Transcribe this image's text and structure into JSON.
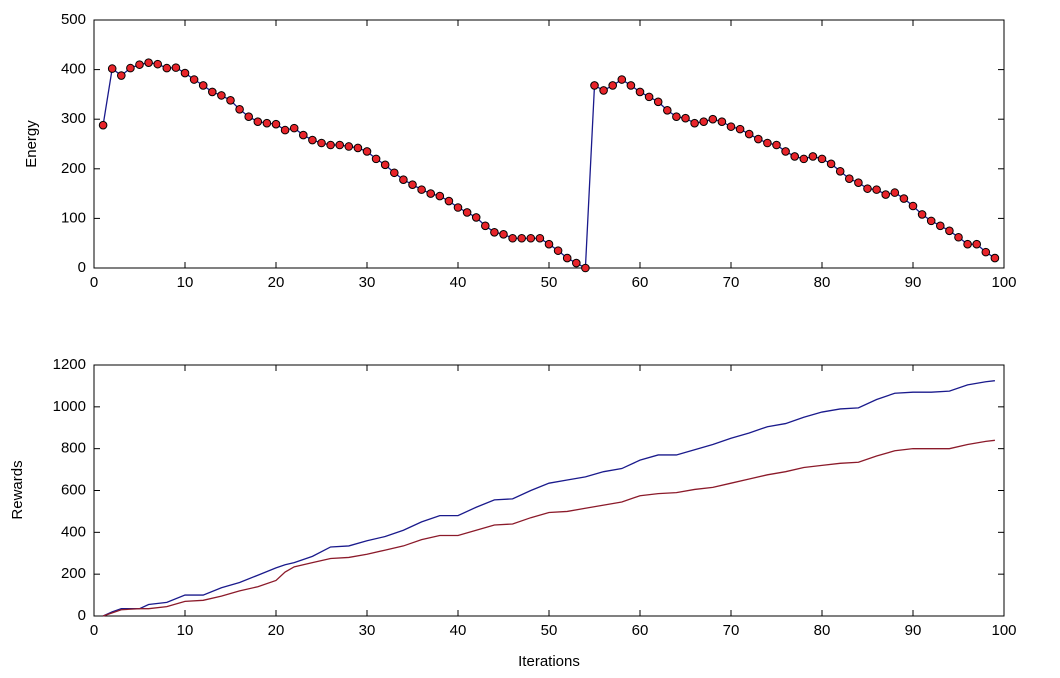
{
  "chart_data": [
    {
      "type": "line",
      "ylabel": "Energy",
      "x": [
        1,
        2,
        3,
        4,
        5,
        6,
        7,
        8,
        9,
        10,
        11,
        12,
        13,
        14,
        15,
        16,
        17,
        18,
        19,
        20,
        21,
        22,
        23,
        24,
        25,
        26,
        27,
        28,
        29,
        30,
        31,
        32,
        33,
        34,
        35,
        36,
        37,
        38,
        39,
        40,
        41,
        42,
        43,
        44,
        45,
        46,
        47,
        48,
        49,
        50,
        51,
        52,
        53,
        54,
        55,
        56,
        57,
        58,
        59,
        60,
        61,
        62,
        63,
        64,
        65,
        66,
        67,
        68,
        69,
        70,
        71,
        72,
        73,
        74,
        75,
        76,
        77,
        78,
        79,
        80,
        81,
        82,
        83,
        84,
        85,
        86,
        87,
        88,
        89,
        90,
        91,
        92,
        93,
        94,
        95,
        96,
        97,
        98,
        99
      ],
      "series": [
        {
          "color": "#1a1a8c",
          "marker_color": "#e8242a",
          "values": [
            288,
            402,
            388,
            403,
            410,
            414,
            411,
            403,
            404,
            393,
            380,
            368,
            355,
            348,
            338,
            320,
            305,
            295,
            292,
            290,
            278,
            282,
            268,
            258,
            252,
            248,
            248,
            245,
            242,
            235,
            220,
            208,
            192,
            178,
            168,
            158,
            150,
            145,
            135,
            122,
            112,
            102,
            85,
            72,
            68,
            60,
            60,
            60,
            60,
            48,
            35,
            20,
            10,
            0,
            368,
            358,
            368,
            380,
            368,
            355,
            345,
            335,
            318,
            305,
            302,
            292,
            295,
            300,
            295,
            285,
            280,
            270,
            260,
            252,
            248,
            235,
            225,
            220,
            225,
            220,
            210,
            195,
            180,
            172,
            160,
            158,
            148,
            152,
            140,
            125,
            108,
            95,
            85,
            75,
            62,
            48,
            48,
            32,
            20
          ]
        }
      ],
      "xlim": [
        0,
        100
      ],
      "xticks": [
        0,
        10,
        20,
        30,
        40,
        50,
        60,
        70,
        80,
        90,
        100
      ],
      "ylim": [
        0,
        500
      ],
      "yticks": [
        0,
        100,
        200,
        300,
        400,
        500
      ],
      "markers": true
    },
    {
      "type": "line",
      "ylabel": "Rewards",
      "xlabel": "Iterations",
      "x": [
        1,
        2,
        3,
        5,
        6,
        8,
        10,
        12,
        14,
        16,
        18,
        20,
        21,
        22,
        24,
        26,
        28,
        30,
        32,
        34,
        36,
        38,
        40,
        42,
        44,
        46,
        48,
        50,
        52,
        54,
        56,
        58,
        60,
        62,
        64,
        66,
        68,
        70,
        72,
        74,
        76,
        78,
        80,
        82,
        84,
        86,
        88,
        90,
        92,
        94,
        96,
        98,
        99
      ],
      "series": [
        {
          "color": "#1a1a8c",
          "values": [
            0,
            20,
            35,
            35,
            55,
            65,
            100,
            100,
            135,
            160,
            195,
            230,
            245,
            255,
            285,
            330,
            335,
            360,
            380,
            410,
            450,
            480,
            480,
            520,
            555,
            560,
            600,
            635,
            650,
            665,
            690,
            705,
            745,
            770,
            770,
            795,
            820,
            850,
            875,
            905,
            920,
            950,
            975,
            990,
            995,
            1035,
            1065,
            1070,
            1070,
            1075,
            1105,
            1120,
            1125
          ]
        },
        {
          "color": "#8b1a2a",
          "values": [
            0,
            15,
            30,
            35,
            35,
            45,
            70,
            75,
            95,
            120,
            140,
            170,
            210,
            235,
            255,
            275,
            280,
            295,
            315,
            335,
            365,
            385,
            385,
            410,
            435,
            440,
            470,
            495,
            500,
            515,
            530,
            545,
            575,
            585,
            590,
            605,
            615,
            635,
            655,
            675,
            690,
            710,
            720,
            730,
            735,
            765,
            790,
            800,
            800,
            800,
            820,
            835,
            840
          ]
        }
      ],
      "xlim": [
        0,
        100
      ],
      "xticks": [
        0,
        10,
        20,
        30,
        40,
        50,
        60,
        70,
        80,
        90,
        100
      ],
      "ylim": [
        0,
        1200
      ],
      "yticks": [
        0,
        200,
        400,
        600,
        800,
        1000,
        1200
      ],
      "markers": false
    }
  ]
}
